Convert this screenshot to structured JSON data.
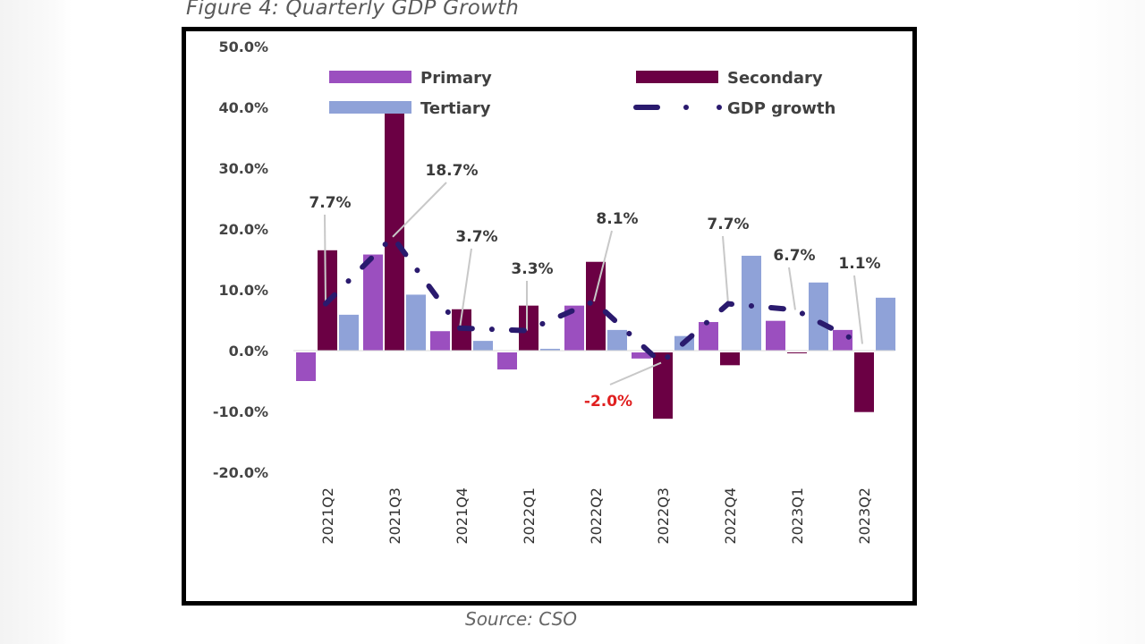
{
  "figure": {
    "title": "Figure 4: Quarterly GDP Growth",
    "source": "Source: CSO"
  },
  "chart_data": {
    "type": "bar",
    "title": "Figure 4: Quarterly GDP Growth",
    "xlabel": "",
    "ylabel": "",
    "ylim": [
      -20,
      50
    ],
    "yticks": [
      "50.0%",
      "40.0%",
      "30.0%",
      "20.0%",
      "10.0%",
      "0.0%",
      "-10.0%",
      "-20.0%"
    ],
    "ytick_values": [
      50,
      40,
      30,
      20,
      10,
      0,
      -10,
      -20
    ],
    "grid": false,
    "legend_position": "top",
    "categories": [
      "2021Q2",
      "2021Q3",
      "2021Q4",
      "2022Q1",
      "2022Q2",
      "2022Q3",
      "2022Q4",
      "2023Q1",
      "2023Q2"
    ],
    "series": [
      {
        "name": "Primary",
        "kind": "bar",
        "color": "#9b4fbf",
        "values": [
          -5.0,
          15.8,
          3.2,
          -3.1,
          7.4,
          -1.3,
          4.7,
          4.9,
          3.4
        ]
      },
      {
        "name": "Secondary",
        "kind": "bar",
        "color": "#6b0044",
        "values": [
          16.5,
          39.5,
          6.8,
          7.4,
          14.6,
          -11.2,
          -2.4,
          -0.2,
          -10.1
        ]
      },
      {
        "name": "Tertiary",
        "kind": "bar",
        "color": "#8fa2d8",
        "values": [
          5.9,
          9.2,
          1.6,
          0.3,
          3.4,
          2.4,
          15.6,
          11.2,
          8.7
        ]
      },
      {
        "name": "GDP growth",
        "kind": "line",
        "style": "dash-dot",
        "color": "#2a1a6e",
        "values": [
          7.7,
          18.7,
          3.7,
          3.3,
          8.1,
          -2.0,
          7.7,
          6.7,
          1.1
        ]
      }
    ],
    "data_labels": [
      {
        "category": "2021Q2",
        "text": "7.7%",
        "color": "#3a3a3a"
      },
      {
        "category": "2021Q3",
        "text": "18.7%",
        "color": "#3a3a3a"
      },
      {
        "category": "2021Q4",
        "text": "3.7%",
        "color": "#3a3a3a"
      },
      {
        "category": "2022Q1",
        "text": "3.3%",
        "color": "#3a3a3a"
      },
      {
        "category": "2022Q2",
        "text": "8.1%",
        "color": "#3a3a3a"
      },
      {
        "category": "2022Q3",
        "text": "-2.0%",
        "color": "#e02020"
      },
      {
        "category": "2022Q4",
        "text": "7.7%",
        "color": "#3a3a3a"
      },
      {
        "category": "2023Q1",
        "text": "6.7%",
        "color": "#3a3a3a"
      },
      {
        "category": "2023Q2",
        "text": "1.1%",
        "color": "#3a3a3a"
      }
    ],
    "legend": [
      "Primary",
      "Secondary",
      "Tertiary",
      "GDP growth"
    ]
  }
}
